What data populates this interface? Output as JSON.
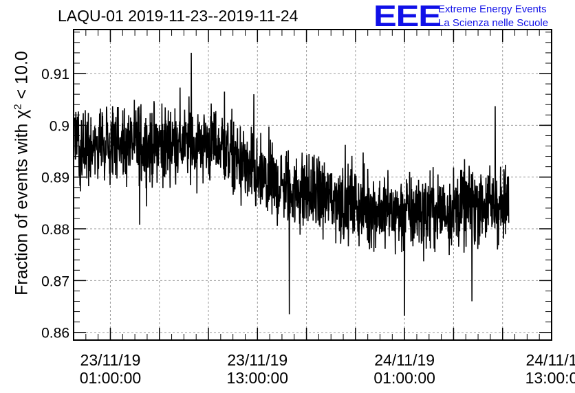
{
  "title": "LAQU-01 2019-11-23--2019-11-24",
  "logo": {
    "mark": "EEE",
    "line1": "Extreme Energy Events",
    "line2": "La Scienza nelle Scuole",
    "color": "#1010e8"
  },
  "chart_data": {
    "type": "line",
    "title": "LAQU-01 2019-11-23--2019-11-24",
    "ylabel_prefix": "Fraction of events with ",
    "ylabel_symbol": "χ",
    "ylabel_power": "2",
    "ylabel_suffix": " < 10.0",
    "xlabel": "",
    "ylim": [
      0.8585,
      0.9185
    ],
    "yticks": [
      "0.86",
      "0.87",
      "0.88",
      "0.89",
      "0.9",
      "0.91"
    ],
    "ytick_values": [
      0.86,
      0.87,
      0.88,
      0.89,
      0.9,
      0.91
    ],
    "xlim_hours": [
      -3.0,
      36.0
    ],
    "xticks": [
      {
        "hour": 0,
        "date": "23/11/19",
        "time": "01:00:00"
      },
      {
        "hour": 12,
        "date": "23/11/19",
        "time": "13:00:00"
      },
      {
        "hour": 24,
        "date": "24/11/19",
        "time": "01:00:00"
      },
      {
        "hour": 36,
        "date": "24/11/1",
        "time": "13:00:0"
      }
    ],
    "grid": true,
    "line_color": "#000000",
    "series_start_hour": -2.9,
    "series_end_hour": 32.5,
    "trend": {
      "hours": [
        -2.9,
        0,
        3,
        6,
        9,
        12,
        15,
        18,
        21,
        24,
        27,
        30,
        32.5
      ],
      "values": [
        0.8955,
        0.896,
        0.8962,
        0.8965,
        0.8962,
        0.8895,
        0.8875,
        0.886,
        0.884,
        0.883,
        0.8835,
        0.885,
        0.884
      ]
    },
    "spread": 0.0038,
    "extremes": [
      {
        "hour": 6.6,
        "value": 0.914
      },
      {
        "hour": 9.3,
        "value": 0.9065
      },
      {
        "hour": 14.6,
        "value": 0.8635
      },
      {
        "hour": 24.0,
        "value": 0.8632
      },
      {
        "hour": 31.4,
        "value": 0.9037
      },
      {
        "hour": 29.5,
        "value": 0.866
      },
      {
        "hour": 11.7,
        "value": 0.906
      },
      {
        "hour": 2.4,
        "value": 0.8808
      }
    ]
  }
}
